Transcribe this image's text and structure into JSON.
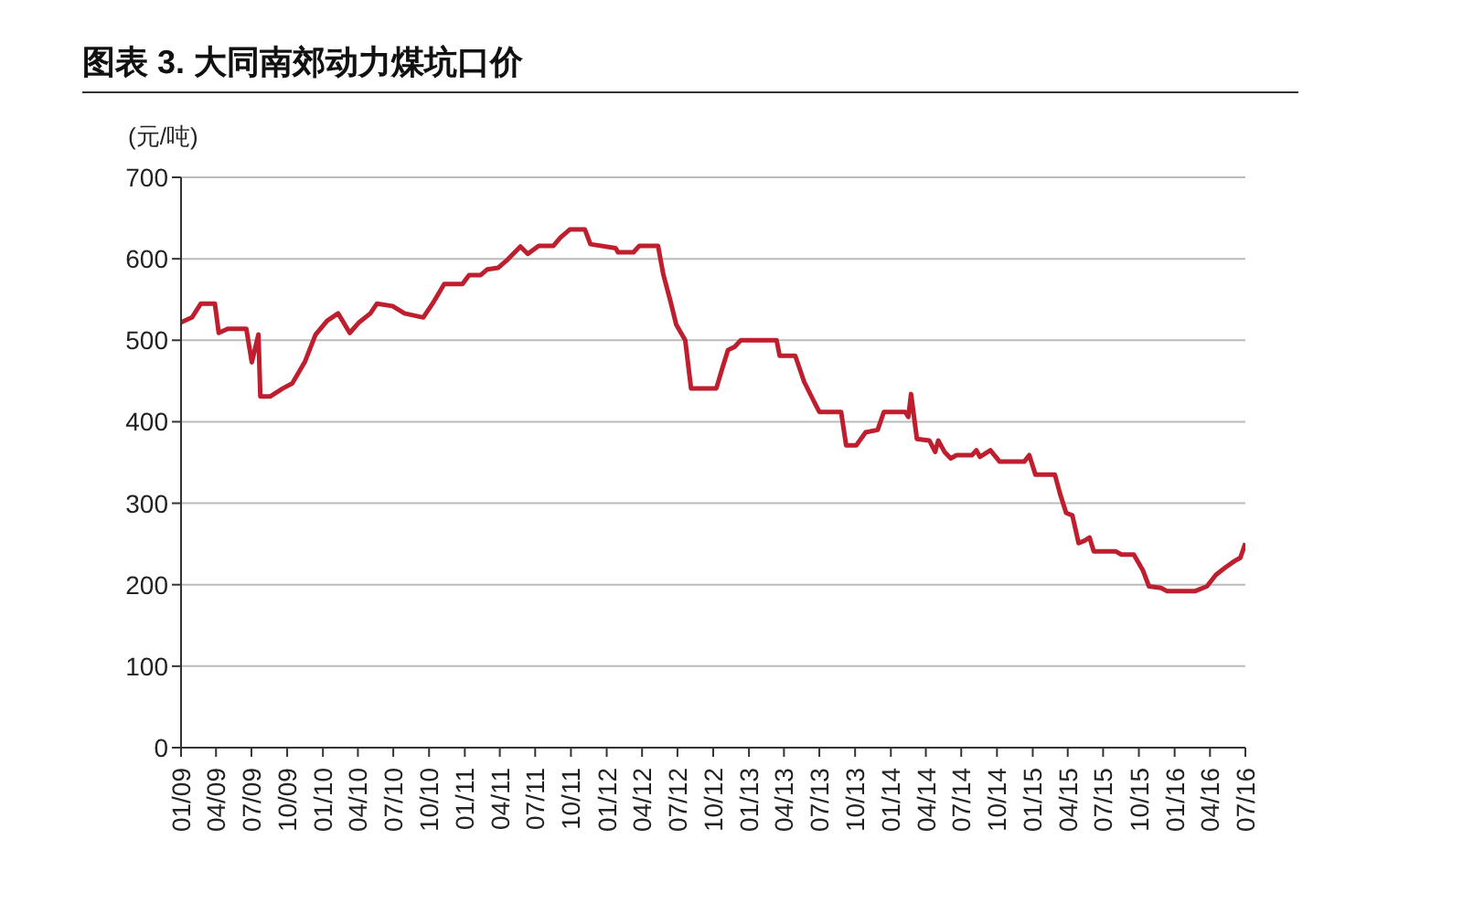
{
  "chart_data": {
    "type": "line",
    "title": "图表 3. 大同南郊动力煤坑口价",
    "ylabel": "(元/吨)",
    "x": [
      "2009-01-01",
      "2009-01-29",
      "2009-02-21",
      "2009-03-29",
      "2009-04-08",
      "2009-05-01",
      "2009-06-18",
      "2009-07-02",
      "2009-07-19",
      "2009-07-24",
      "2009-08-18",
      "2009-09-20",
      "2009-10-14",
      "2009-11-16",
      "2009-12-13",
      "2010-01-12",
      "2010-02-09",
      "2010-03-11",
      "2010-04-04",
      "2010-05-03",
      "2010-05-20",
      "2010-06-29",
      "2010-07-30",
      "2010-09-16",
      "2010-10-10",
      "2010-11-09",
      "2010-12-26",
      "2011-01-12",
      "2011-02-11",
      "2011-02-28",
      "2011-03-28",
      "2011-04-21",
      "2011-05-24",
      "2011-06-12",
      "2011-07-10",
      "2011-08-17",
      "2011-09-04",
      "2011-09-28",
      "2011-11-06",
      "2011-11-20",
      "2012-01-24",
      "2012-01-30",
      "2012-03-10",
      "2012-03-25",
      "2012-05-12",
      "2012-05-26",
      "2012-06-13",
      "2012-06-28",
      "2012-07-21",
      "2012-08-05",
      "2012-10-01",
      "2012-10-09",
      "2012-10-24",
      "2012-11-08",
      "2012-11-25",
      "2012-12-11",
      "2013-03-13",
      "2013-03-21",
      "2013-04-30",
      "2013-05-23",
      "2013-06-16",
      "2013-07-01",
      "2013-08-26",
      "2013-09-08",
      "2013-10-04",
      "2013-10-28",
      "2013-11-28",
      "2013-12-14",
      "2014-02-07",
      "2014-02-15",
      "2014-02-22",
      "2014-03-09",
      "2014-04-10",
      "2014-04-25",
      "2014-05-03",
      "2014-05-19",
      "2014-06-04",
      "2014-06-19",
      "2014-07-29",
      "2014-08-09",
      "2014-08-18",
      "2014-09-14",
      "2014-10-08",
      "2014-12-10",
      "2014-12-23",
      "2015-01-08",
      "2015-02-27",
      "2015-03-12",
      "2015-03-28",
      "2015-04-13",
      "2015-04-29",
      "2015-05-14",
      "2015-05-27",
      "2015-06-07",
      "2015-08-02",
      "2015-08-17",
      "2015-09-18",
      "2015-10-11",
      "2015-10-27",
      "2015-11-27",
      "2015-12-13",
      "2016-02-22",
      "2016-03-24",
      "2016-04-16",
      "2016-05-10",
      "2016-06-03",
      "2016-06-18",
      "2016-07-01"
    ],
    "series": [
      {
        "color": "#be1e2d",
        "values": [
          522,
          528,
          545,
          545,
          509,
          514,
          514,
          473,
          507,
          431,
          431,
          441,
          447,
          474,
          507,
          524,
          533,
          509,
          522,
          533,
          545,
          542,
          533,
          528,
          545,
          569,
          569,
          580,
          580,
          587,
          589,
          599,
          615,
          606,
          616,
          616,
          626,
          636,
          636,
          618,
          613,
          608,
          608,
          616,
          616,
          580,
          548,
          519,
          500,
          441,
          441,
          441,
          465,
          488,
          492,
          500,
          500,
          481,
          481,
          449,
          426,
          412,
          412,
          371,
          371,
          387,
          390,
          412,
          412,
          406,
          434,
          379,
          377,
          363,
          377,
          363,
          355,
          359,
          359,
          365,
          357,
          365,
          351,
          351,
          359,
          335,
          335,
          312,
          288,
          285,
          251,
          254,
          258,
          241,
          241,
          237,
          237,
          218,
          198,
          196,
          192,
          192,
          198,
          212,
          221,
          229,
          233,
          251
        ]
      }
    ],
    "xlim": [
      "2009-01-01",
      "2016-07-01"
    ],
    "xticks": [
      {
        "value": "2009-01-01",
        "label": "01/09"
      },
      {
        "value": "2009-04-01",
        "label": "04/09"
      },
      {
        "value": "2009-07-01",
        "label": "07/09"
      },
      {
        "value": "2009-10-01",
        "label": "10/09"
      },
      {
        "value": "2010-01-01",
        "label": "01/10"
      },
      {
        "value": "2010-04-01",
        "label": "04/10"
      },
      {
        "value": "2010-07-01",
        "label": "07/10"
      },
      {
        "value": "2010-10-01",
        "label": "10/10"
      },
      {
        "value": "2011-01-01",
        "label": "01/11"
      },
      {
        "value": "2011-04-01",
        "label": "04/11"
      },
      {
        "value": "2011-07-01",
        "label": "07/11"
      },
      {
        "value": "2011-10-01",
        "label": "10/11"
      },
      {
        "value": "2012-01-01",
        "label": "01/12"
      },
      {
        "value": "2012-04-01",
        "label": "04/12"
      },
      {
        "value": "2012-07-01",
        "label": "07/12"
      },
      {
        "value": "2012-10-01",
        "label": "10/12"
      },
      {
        "value": "2013-01-01",
        "label": "01/13"
      },
      {
        "value": "2013-04-01",
        "label": "04/13"
      },
      {
        "value": "2013-07-01",
        "label": "07/13"
      },
      {
        "value": "2013-10-01",
        "label": "10/13"
      },
      {
        "value": "2014-01-01",
        "label": "01/14"
      },
      {
        "value": "2014-04-01",
        "label": "04/14"
      },
      {
        "value": "2014-07-01",
        "label": "07/14"
      },
      {
        "value": "2014-10-01",
        "label": "10/14"
      },
      {
        "value": "2015-01-01",
        "label": "01/15"
      },
      {
        "value": "2015-04-01",
        "label": "04/15"
      },
      {
        "value": "2015-07-01",
        "label": "07/15"
      },
      {
        "value": "2015-10-01",
        "label": "10/15"
      },
      {
        "value": "2016-01-01",
        "label": "01/16"
      },
      {
        "value": "2016-04-01",
        "label": "04/16"
      },
      {
        "value": "2016-07-01",
        "label": "07/16"
      }
    ],
    "ylim": [
      0,
      700
    ],
    "yticks": [
      0,
      100,
      200,
      300,
      400,
      500,
      600,
      700
    ],
    "grid": "y",
    "line_style": "solid",
    "marker": "none"
  }
}
